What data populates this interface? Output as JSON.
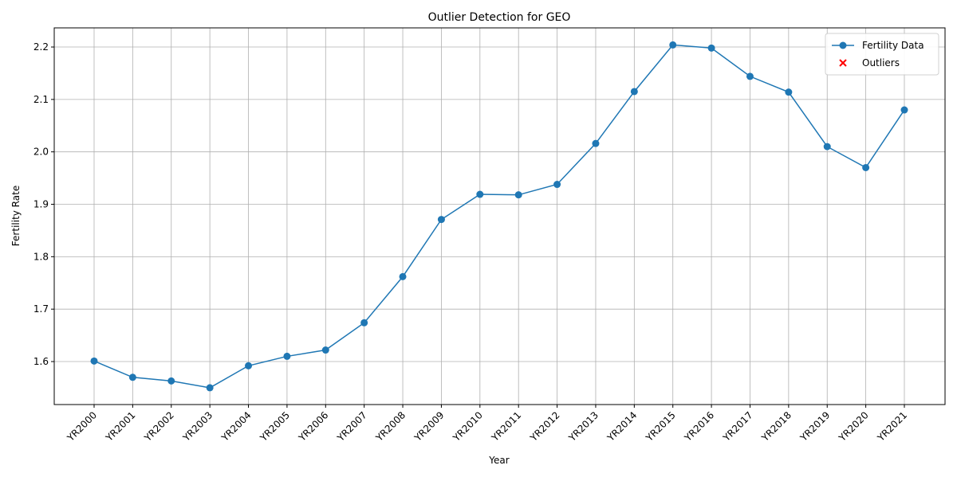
{
  "chart_data": {
    "type": "line",
    "title": "Outlier Detection for GEO",
    "x_label": "Year",
    "y_label": "Fertility Rate",
    "categories": [
      "YR2000",
      "YR2001",
      "YR2002",
      "YR2003",
      "YR2004",
      "YR2005",
      "YR2006",
      "YR2007",
      "YR2008",
      "YR2009",
      "YR2010",
      "YR2011",
      "YR2012",
      "YR2013",
      "YR2014",
      "YR2015",
      "YR2016",
      "YR2017",
      "YR2018",
      "YR2019",
      "YR2020",
      "YR2021"
    ],
    "series": [
      {
        "name": "Fertility Data",
        "color": "#1f77b4",
        "marker": "o",
        "values": [
          1.601,
          1.57,
          1.563,
          1.55,
          1.592,
          1.61,
          1.622,
          1.674,
          1.762,
          1.871,
          1.919,
          1.918,
          1.938,
          2.016,
          2.115,
          2.204,
          2.198,
          2.144,
          2.114,
          2.01,
          1.97,
          2.08
        ]
      },
      {
        "name": "Outliers",
        "color": "#ff0000",
        "marker": "x",
        "values": [
          null,
          null,
          null,
          null,
          null,
          null,
          null,
          null,
          null,
          null,
          null,
          null,
          null,
          null,
          null,
          null,
          null,
          null,
          null,
          null,
          null,
          null
        ]
      }
    ],
    "ylim": [
      1.518,
      2.2365
    ],
    "yticks": [
      1.6,
      1.7,
      1.8,
      1.9,
      2.0,
      2.1,
      2.2
    ],
    "grid": true,
    "legend": "upper right"
  }
}
